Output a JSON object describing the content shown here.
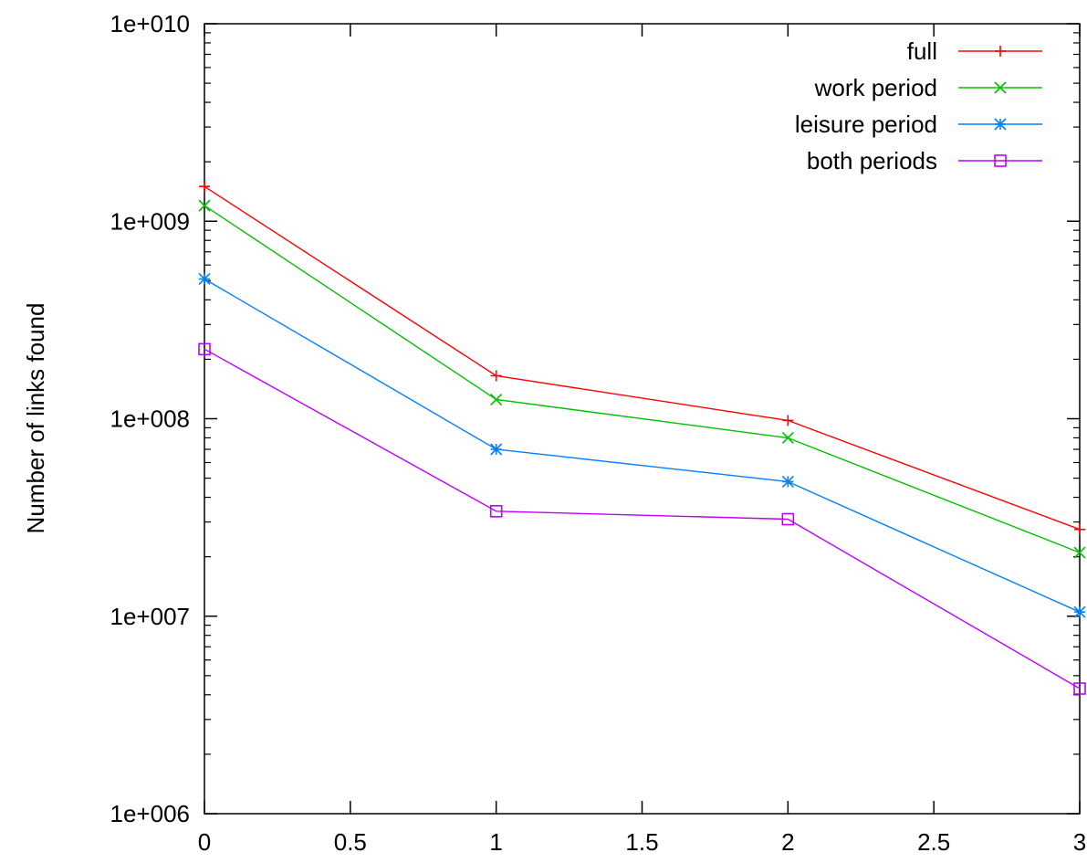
{
  "chart_data": {
    "type": "line",
    "title": "",
    "xlabel": "",
    "ylabel": "Number of links found",
    "xlim": [
      0,
      3
    ],
    "ylim": [
      1000000,
      10000000000
    ],
    "yscale": "log",
    "grid": false,
    "legend_position": "top-right",
    "x_ticks": [
      0,
      0.5,
      1,
      1.5,
      2,
      2.5,
      3
    ],
    "x_tick_labels": [
      "0",
      "0.5",
      "1",
      "1.5",
      "2",
      "2.5",
      "3"
    ],
    "y_ticks": [
      1000000,
      10000000,
      100000000,
      1000000000,
      10000000000
    ],
    "y_tick_labels": [
      "1e+006",
      "1e+007",
      "1e+008",
      "1e+009",
      "1e+010"
    ],
    "x": [
      0,
      1,
      2,
      3
    ],
    "series": [
      {
        "name": "full",
        "values": [
          1500000000,
          165000000,
          98000000,
          27500000
        ],
        "color": "#ff0000",
        "marker": "plus"
      },
      {
        "name": "work period",
        "values": [
          1200000000,
          125000000,
          80000000,
          21000000
        ],
        "color": "#00c000",
        "marker": "x"
      },
      {
        "name": "leisure period",
        "values": [
          510000000,
          70000000,
          48000000,
          10500000
        ],
        "color": "#0080ff",
        "marker": "star"
      },
      {
        "name": "both periods",
        "values": [
          225000000,
          34000000,
          31000000,
          4300000
        ],
        "color": "#c000ff",
        "marker": "square"
      }
    ]
  }
}
